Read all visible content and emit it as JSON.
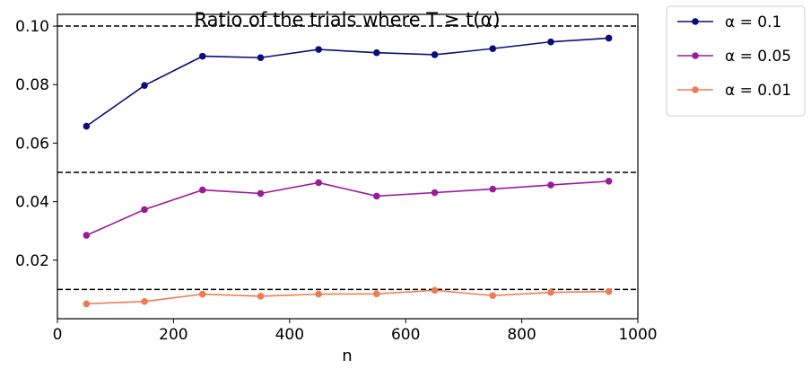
{
  "chart_data": {
    "type": "line",
    "title": "Ratio of the trials where T ≥ t(α)",
    "xlabel": "n",
    "ylabel": "",
    "xlim": [
      0,
      1000
    ],
    "ylim": [
      0.0,
      0.104
    ],
    "xticks": [
      0,
      200,
      400,
      600,
      800,
      1000
    ],
    "yticks": [
      0.02,
      0.04,
      0.06,
      0.08,
      0.1
    ],
    "ytick_labels": [
      "0.02",
      "0.04",
      "0.06",
      "0.08",
      "0.10"
    ],
    "x": [
      50,
      150,
      250,
      350,
      450,
      550,
      650,
      750,
      850,
      950
    ],
    "series": [
      {
        "name": "α = 0.1",
        "color": "#0c0c7a",
        "values": [
          0.0658,
          0.0797,
          0.0897,
          0.0892,
          0.092,
          0.0909,
          0.0902,
          0.0923,
          0.0946,
          0.0959
        ]
      },
      {
        "name": "α = 0.05",
        "color": "#9b1a9c",
        "values": [
          0.0285,
          0.0373,
          0.044,
          0.0428,
          0.0465,
          0.0419,
          0.0431,
          0.0443,
          0.0457,
          0.047
        ]
      },
      {
        "name": "α = 0.01",
        "color": "#ee7b51",
        "values": [
          0.0051,
          0.0059,
          0.0084,
          0.0077,
          0.0084,
          0.0085,
          0.0097,
          0.0079,
          0.009,
          0.0093
        ]
      }
    ],
    "reference_lines": [
      0.1,
      0.05,
      0.01
    ],
    "legend_position": "outside-top-right",
    "grid": false
  }
}
